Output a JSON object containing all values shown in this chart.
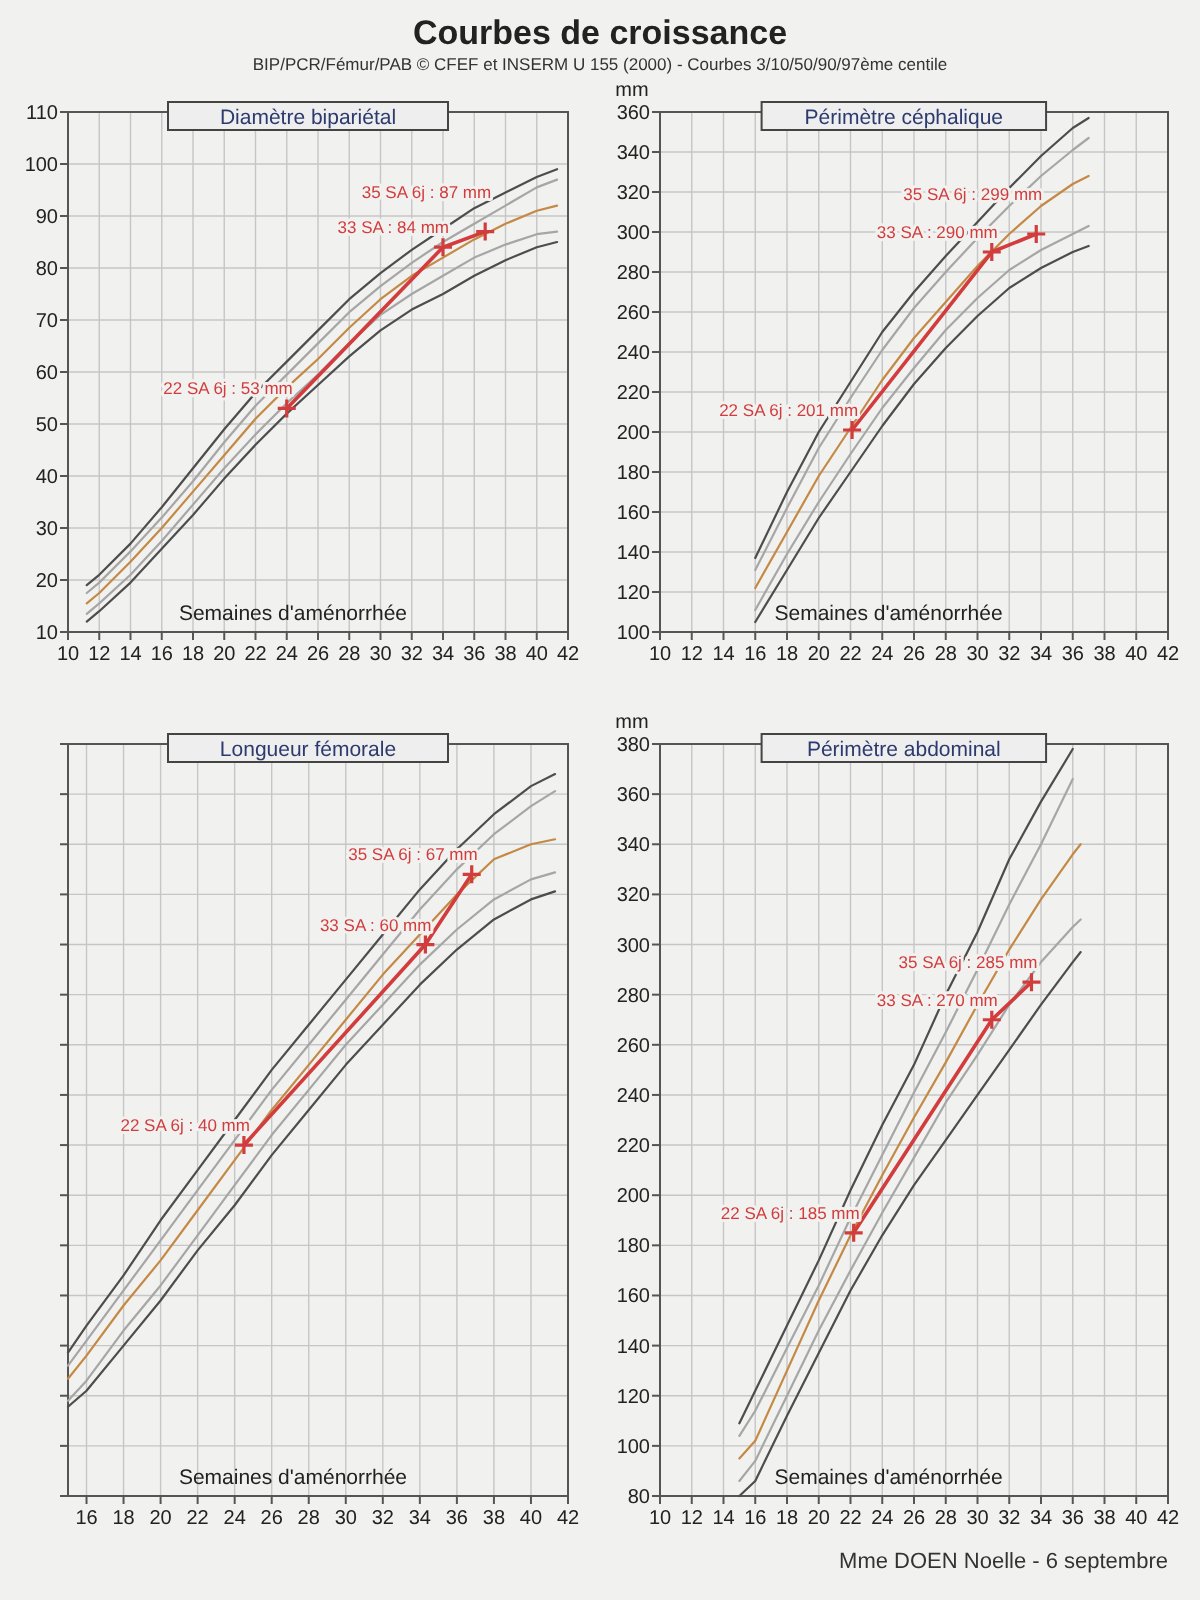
{
  "chart_data": [
    {
      "type": "other",
      "title": "Courbes de croissance",
      "subtitle": "BIP/PCR/Fémur/PAB © CFEF et INSERM U 155 (2000) - Courbes 3/10/50/90/97ème centile"
    },
    {
      "type": "line",
      "title": "Diamètre bipariétal",
      "xlabel": "Semaines d'aménorrhée",
      "xlim": [
        10,
        42
      ],
      "xticks": [
        10,
        12,
        14,
        16,
        18,
        20,
        22,
        24,
        26,
        28,
        30,
        32,
        34,
        36,
        38,
        40,
        42
      ],
      "ylim": [
        10,
        110
      ],
      "yticks": [
        10,
        20,
        30,
        40,
        50,
        60,
        70,
        80,
        90,
        100,
        110
      ],
      "grid": true,
      "x": [
        11.2,
        12,
        14,
        16,
        18,
        20,
        22,
        24,
        26,
        28,
        30,
        32,
        34,
        36,
        38,
        40,
        41.3
      ],
      "series": [
        {
          "color": "#4d4d4d",
          "values": [
            19,
            21,
            27,
            34,
            41.5,
            49,
            56,
            62,
            68,
            74,
            79,
            83.5,
            87.5,
            91.5,
            94.5,
            97.5,
            99
          ]
        },
        {
          "color": "#a6a6a6",
          "values": [
            17.5,
            19.5,
            25.5,
            32,
            39,
            46.5,
            53.5,
            59.5,
            65.5,
            71.5,
            76.5,
            81,
            85,
            88.5,
            92,
            95.5,
            97
          ]
        },
        {
          "color": "#c48a45",
          "values": [
            15.5,
            17.5,
            23.5,
            30,
            37,
            44,
            51,
            57,
            62.5,
            68.5,
            74,
            78.5,
            82,
            85.5,
            88.5,
            91,
            92
          ]
        },
        {
          "color": "#a6a6a6",
          "values": [
            13.5,
            15.5,
            21,
            27.5,
            34.5,
            41.5,
            48,
            54,
            59.5,
            65.5,
            71,
            75,
            78.5,
            82,
            84.5,
            86.5,
            87
          ]
        },
        {
          "color": "#4d4d4d",
          "values": [
            12,
            14,
            19.5,
            26,
            32.5,
            39.5,
            46,
            52,
            57.5,
            63,
            68,
            72,
            75,
            78.5,
            81.5,
            84,
            85
          ]
        },
        {
          "color": "#d23c3c",
          "marker": "cross",
          "x": [
            24,
            34,
            36.7
          ],
          "values": [
            53,
            84,
            87
          ],
          "value_labels": [
            "22 SA 6j : 53 mm",
            "33 SA : 84 mm",
            "35 SA 6j : 87 mm"
          ]
        }
      ]
    },
    {
      "type": "line",
      "title": "Périmètre céphalique",
      "xlabel": "Semaines d'aménorrhée",
      "ylabel": "mm",
      "xlim": [
        10,
        42
      ],
      "xticks": [
        10,
        12,
        14,
        16,
        18,
        20,
        22,
        24,
        26,
        28,
        30,
        32,
        34,
        36,
        38,
        40,
        42
      ],
      "ylim": [
        100,
        360
      ],
      "yticks": [
        100,
        120,
        140,
        160,
        180,
        200,
        220,
        240,
        260,
        280,
        300,
        320,
        340,
        360
      ],
      "grid": true,
      "x": [
        16,
        18,
        20,
        22,
        24,
        26,
        28,
        30,
        32,
        34,
        36,
        37
      ],
      "series": [
        {
          "color": "#4d4d4d",
          "values": [
            137,
            170,
            200,
            225,
            250,
            270,
            288,
            305,
            322,
            338,
            352,
            357
          ]
        },
        {
          "color": "#a6a6a6",
          "values": [
            131,
            162,
            192,
            217,
            241,
            262,
            280,
            297,
            313,
            328,
            341,
            347
          ]
        },
        {
          "color": "#c48a45",
          "values": [
            122,
            150,
            178,
            202,
            226,
            247,
            265,
            283,
            299,
            313,
            324,
            328
          ]
        },
        {
          "color": "#a6a6a6",
          "values": [
            111,
            139,
            165,
            189,
            212,
            232,
            251,
            267,
            281,
            291,
            299,
            303
          ]
        },
        {
          "color": "#4d4d4d",
          "values": [
            105,
            131,
            157,
            180,
            203,
            224,
            242,
            258,
            272,
            282,
            290,
            293
          ]
        },
        {
          "color": "#d23c3c",
          "marker": "cross",
          "x": [
            22.1,
            30.9,
            33.7
          ],
          "values": [
            201,
            290,
            299
          ],
          "value_labels": [
            "22 SA 6j : 201 mm",
            "33 SA : 290 mm",
            "35 SA 6j : 299 mm"
          ]
        }
      ]
    },
    {
      "type": "line",
      "title": "Longueur fémorale",
      "xlabel": "Semaines d'aménorrhée",
      "xlim": [
        15,
        42
      ],
      "xticks": [
        16,
        18,
        20,
        22,
        24,
        26,
        28,
        30,
        32,
        34,
        36,
        38,
        40,
        42
      ],
      "ylim": [
        5,
        80
      ],
      "yticks": [
        {
          "value": 5,
          "label": null
        },
        {
          "value": 10,
          "label": null
        },
        {
          "value": 15,
          "label": null
        },
        {
          "value": 20,
          "label": null
        },
        {
          "value": 25,
          "label": null
        },
        {
          "value": 30,
          "label": null
        },
        {
          "value": 35,
          "label": null
        },
        {
          "value": 40,
          "label": null
        },
        {
          "value": 45,
          "label": null
        },
        {
          "value": 50,
          "label": null
        },
        {
          "value": 55,
          "label": null
        },
        {
          "value": 60,
          "label": null
        },
        {
          "value": 65,
          "label": null
        },
        {
          "value": 70,
          "label": null
        },
        {
          "value": 75,
          "label": null
        },
        {
          "value": 80,
          "label": null
        }
      ],
      "grid": true,
      "x": [
        15,
        16,
        18,
        20,
        22,
        24,
        26,
        28,
        30,
        32,
        34,
        36,
        38,
        40,
        41.3
      ],
      "series": [
        {
          "color": "#4d4d4d",
          "values": [
            19.3,
            22,
            27,
            32.5,
            37.5,
            42.5,
            47.5,
            52,
            56.5,
            61,
            65.5,
            69.5,
            73,
            75.8,
            77
          ]
        },
        {
          "color": "#a6a6a6",
          "values": [
            18,
            20.5,
            25.5,
            30.5,
            35.5,
            40.5,
            45.5,
            50,
            54.5,
            59,
            63.5,
            67.5,
            71,
            73.8,
            75.3
          ]
        },
        {
          "color": "#c48a45",
          "values": [
            16.7,
            19,
            24,
            28.5,
            33.5,
            38.5,
            43.5,
            48,
            52.5,
            57,
            61,
            65,
            68.5,
            70,
            70.5
          ]
        },
        {
          "color": "#a6a6a6",
          "values": [
            14.5,
            16.5,
            21.5,
            26,
            31,
            36,
            41,
            45.5,
            50,
            54,
            58,
            61.5,
            64.5,
            66.5,
            67.2
          ]
        },
        {
          "color": "#4d4d4d",
          "values": [
            13.9,
            15.5,
            20,
            24.5,
            29.5,
            34,
            39,
            43.5,
            48,
            52,
            56,
            59.5,
            62.5,
            64.5,
            65.3
          ]
        },
        {
          "color": "#d23c3c",
          "marker": "cross",
          "x": [
            24.5,
            34.3,
            36.8
          ],
          "values": [
            40,
            60,
            67
          ],
          "value_labels": [
            "22 SA 6j : 40 mm",
            "33 SA : 60 mm",
            "35 SA 6j : 67 mm"
          ]
        }
      ]
    },
    {
      "type": "line",
      "title": "Périmètre abdominal",
      "xlabel": "Semaines d'aménorrhée",
      "ylabel": "mm",
      "xlim": [
        10,
        42
      ],
      "xticks": [
        10,
        12,
        14,
        16,
        18,
        20,
        22,
        24,
        26,
        28,
        30,
        32,
        34,
        36,
        38,
        40,
        42
      ],
      "ylim": [
        80,
        380
      ],
      "yticks": [
        80,
        100,
        120,
        140,
        160,
        180,
        200,
        220,
        240,
        260,
        280,
        300,
        320,
        340,
        360,
        380
      ],
      "grid": true,
      "annotations": [
        "Mme DOEN Noelle - 6 septembre"
      ],
      "x": [
        15,
        16,
        18,
        20,
        22,
        24,
        26,
        28,
        30,
        32,
        34,
        36,
        36.5
      ],
      "series": [
        {
          "color": "#4d4d4d",
          "values": [
            109,
            122,
            148,
            174,
            202,
            228,
            252,
            280,
            305,
            334,
            357,
            378,
            null
          ]
        },
        {
          "color": "#a6a6a6",
          "values": [
            104,
            114,
            139,
            164,
            191,
            216,
            241,
            265,
            290,
            316,
            340,
            366,
            null
          ]
        },
        {
          "color": "#c48a45",
          "values": [
            95,
            102,
            130,
            158,
            184,
            208,
            231,
            253,
            276,
            298,
            318,
            336,
            340
          ]
        },
        {
          "color": "#a6a6a6",
          "values": [
            86,
            94,
            120,
            146,
            170,
            193,
            215,
            237,
            256,
            276,
            293,
            307,
            310
          ]
        },
        {
          "color": "#4d4d4d",
          "values": [
            80,
            86,
            112,
            137,
            162,
            184,
            204,
            222,
            240,
            258,
            276,
            293,
            297
          ]
        },
        {
          "color": "#d23c3c",
          "marker": "cross",
          "x": [
            22.2,
            30.9,
            33.4
          ],
          "values": [
            185,
            270,
            285
          ],
          "value_labels": [
            "22 SA 6j : 185 mm",
            "33 SA : 270 mm",
            "35 SA 6j : 285 mm"
          ]
        }
      ]
    }
  ]
}
